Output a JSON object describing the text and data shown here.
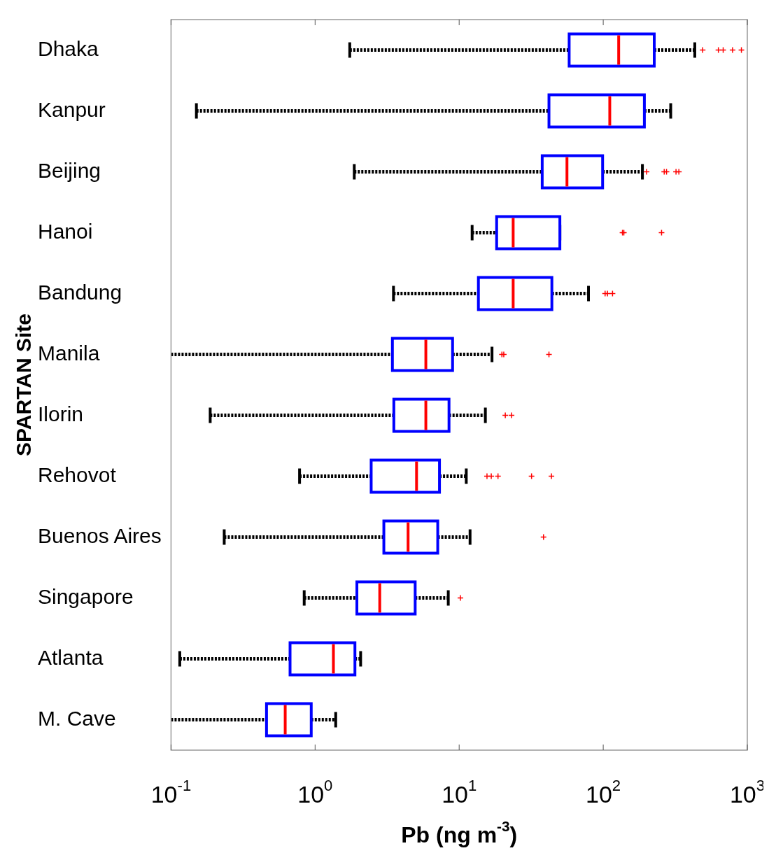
{
  "chart_data": {
    "type": "box",
    "orientation": "horizontal",
    "color": "#0000ff",
    "ylabel": "SPARTAN Site",
    "xlabel": "Pb (ng m$^{-3}$)",
    "log": "x",
    "grid": false,
    "categories": [
      "Dhaka",
      "Kanpur",
      "Beijing",
      "Hanoi",
      "Bandung",
      "Manila",
      "Ilorin",
      "Rehovot",
      "Buenos Aires",
      "Singapore",
      "Atlanta",
      "M. Cave"
    ],
    "xlim": [
      0.1,
      1000
    ],
    "xticks": [
      {
        "value": 0.1,
        "label": "10$^{-1}$"
      },
      {
        "value": 1,
        "label": "10$^{0}$"
      },
      {
        "value": 10,
        "label": "10$^{1}$"
      },
      {
        "value": 100,
        "label": "10$^{2}$"
      },
      {
        "value": 1000,
        "label": "10$^{3}$"
      }
    ],
    "boxes": [
      {
        "low": 1.74,
        "q1": 58,
        "median": 128,
        "q3": 226,
        "high": 432,
        "outliers": [
          490,
          630,
          680,
          790,
          910
        ]
      },
      {
        "low": 0.15,
        "q1": 42,
        "median": 111,
        "q3": 193,
        "high": 294
      },
      {
        "low": 1.87,
        "q1": 37.7,
        "median": 56,
        "q3": 99,
        "high": 187,
        "outliers": [
          200,
          265,
          275,
          320,
          335
        ]
      },
      {
        "low": 12.3,
        "q1": 18.2,
        "median": 23.7,
        "q3": 50,
        "high": 50,
        "outliers": [
          136,
          139,
          254
        ]
      },
      {
        "low": 3.5,
        "q1": 13.6,
        "median": 23.7,
        "q3": 44,
        "high": 79,
        "outliers": [
          103,
          107,
          116
        ]
      },
      {
        "low": 0.1,
        "q1": 3.44,
        "median": 5.87,
        "q3": 9.0,
        "high": 16.9,
        "outliers": [
          19.8,
          20.4,
          42
        ]
      },
      {
        "low": 0.187,
        "q1": 3.52,
        "median": 5.87,
        "q3": 8.5,
        "high": 15.2,
        "outliers": [
          20.9,
          23.1
        ]
      },
      {
        "low": 0.78,
        "q1": 2.45,
        "median": 5.06,
        "q3": 7.3,
        "high": 11.2,
        "outliers": [
          15.6,
          16.7,
          18.6,
          31.8,
          43.7
        ]
      },
      {
        "low": 0.234,
        "q1": 3.0,
        "median": 4.42,
        "q3": 7.1,
        "high": 11.9,
        "outliers": [
          38.5
        ]
      },
      {
        "low": 0.84,
        "q1": 1.95,
        "median": 2.81,
        "q3": 4.95,
        "high": 8.4,
        "outliers": [
          10.2
        ]
      },
      {
        "low": 0.115,
        "q1": 0.67,
        "median": 1.34,
        "q3": 1.89,
        "high": 2.07
      },
      {
        "low": 0.1,
        "q1": 0.46,
        "median": 0.62,
        "q3": 0.94,
        "high": 1.39
      }
    ]
  }
}
